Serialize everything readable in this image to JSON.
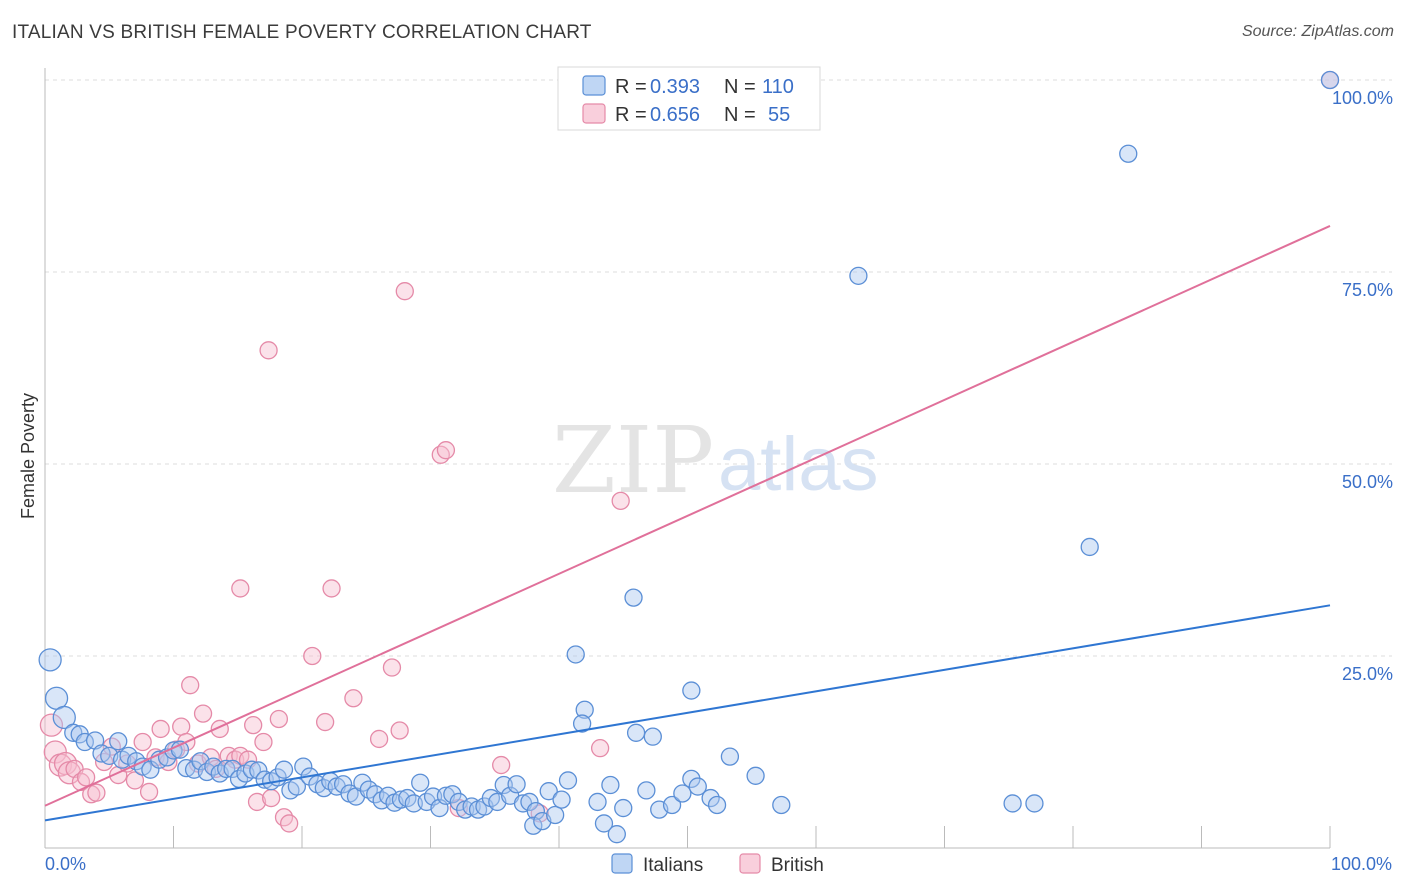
{
  "title": "ITALIAN VS BRITISH FEMALE POVERTY CORRELATION CHART",
  "source": "Source: ZipAtlas.com",
  "watermark": {
    "part1": "ZIP",
    "part2": "atlas"
  },
  "colors": {
    "italians_fill": "#aac8f0",
    "italians_stroke": "#5b8fd6",
    "italians_line": "#2f76d2",
    "british_fill": "#f7bfd0",
    "british_stroke": "#e58aa8",
    "british_line": "#e0709a",
    "grid": "#dddddd",
    "label": "#3a6fc8"
  },
  "legend": {
    "rows": [
      {
        "r_label": "R =",
        "r_value": "0.393",
        "n_label": "N =",
        "n_value": "110"
      },
      {
        "r_label": "R =",
        "r_value": "0.656",
        "n_label": "N =",
        "n_value": "55"
      }
    ]
  },
  "bottom_legend": {
    "italians": "Italians",
    "british": "British"
  },
  "chart_data": {
    "type": "scatter",
    "title": "ITALIAN VS BRITISH FEMALE POVERTY CORRELATION CHART",
    "xlabel": "",
    "ylabel": "Female Poverty",
    "xlim": [
      0,
      100
    ],
    "ylim": [
      0,
      100
    ],
    "x_tick_labels": [
      "0.0%",
      "100.0%"
    ],
    "y_tick_labels": [
      "100.0%",
      "75.0%",
      "50.0%",
      "25.0%"
    ],
    "y_ticks": [
      100,
      75,
      50,
      25
    ],
    "grid": true,
    "legend_position": "top-center",
    "series": [
      {
        "name": "Italians",
        "R": 0.393,
        "N": 110,
        "trend": {
          "x": [
            0,
            100
          ],
          "y": [
            3.6,
            31.6
          ]
        },
        "points": [
          [
            0.4,
            24.5
          ],
          [
            0.9,
            19.5
          ],
          [
            1.5,
            17.0
          ],
          [
            2.2,
            15.0
          ],
          [
            2.7,
            14.8
          ],
          [
            3.1,
            13.8
          ],
          [
            3.9,
            14.0
          ],
          [
            4.4,
            12.3
          ],
          [
            5.0,
            12.0
          ],
          [
            5.7,
            13.9
          ],
          [
            6.0,
            11.5
          ],
          [
            6.5,
            12.0
          ],
          [
            7.1,
            11.3
          ],
          [
            7.6,
            10.6
          ],
          [
            8.2,
            10.2
          ],
          [
            8.9,
            11.5
          ],
          [
            9.5,
            11.8
          ],
          [
            10.0,
            12.7
          ],
          [
            10.5,
            12.8
          ],
          [
            11.0,
            10.4
          ],
          [
            11.6,
            10.2
          ],
          [
            12.1,
            11.3
          ],
          [
            12.6,
            9.9
          ],
          [
            13.1,
            10.6
          ],
          [
            13.6,
            9.7
          ],
          [
            14.1,
            10.3
          ],
          [
            14.6,
            10.3
          ],
          [
            15.1,
            9.0
          ],
          [
            15.6,
            9.7
          ],
          [
            16.1,
            10.2
          ],
          [
            16.6,
            10.1
          ],
          [
            17.1,
            8.9
          ],
          [
            17.6,
            8.7
          ],
          [
            18.1,
            9.2
          ],
          [
            18.6,
            10.2
          ],
          [
            19.1,
            7.5
          ],
          [
            19.6,
            8.0
          ],
          [
            20.1,
            10.6
          ],
          [
            20.6,
            9.3
          ],
          [
            21.2,
            8.3
          ],
          [
            21.7,
            7.8
          ],
          [
            22.2,
            8.7
          ],
          [
            22.7,
            8.0
          ],
          [
            23.2,
            8.3
          ],
          [
            23.7,
            7.1
          ],
          [
            24.2,
            6.7
          ],
          [
            24.7,
            8.5
          ],
          [
            25.2,
            7.6
          ],
          [
            25.7,
            7.0
          ],
          [
            26.2,
            6.2
          ],
          [
            26.7,
            6.8
          ],
          [
            27.2,
            5.9
          ],
          [
            27.7,
            6.3
          ],
          [
            28.2,
            6.5
          ],
          [
            28.7,
            5.8
          ],
          [
            29.2,
            8.5
          ],
          [
            29.7,
            6.0
          ],
          [
            30.2,
            6.7
          ],
          [
            30.7,
            5.2
          ],
          [
            31.2,
            6.8
          ],
          [
            31.7,
            7.0
          ],
          [
            32.2,
            6.0
          ],
          [
            32.7,
            5.0
          ],
          [
            33.2,
            5.4
          ],
          [
            33.7,
            5.0
          ],
          [
            34.2,
            5.4
          ],
          [
            34.7,
            6.5
          ],
          [
            35.2,
            6.0
          ],
          [
            35.7,
            8.2
          ],
          [
            36.2,
            6.8
          ],
          [
            36.7,
            8.3
          ],
          [
            37.2,
            5.8
          ],
          [
            37.7,
            6.0
          ],
          [
            38.2,
            4.8
          ],
          [
            38.0,
            2.9
          ],
          [
            38.7,
            3.5
          ],
          [
            39.2,
            7.4
          ],
          [
            39.7,
            4.3
          ],
          [
            40.2,
            6.3
          ],
          [
            40.7,
            8.8
          ],
          [
            41.3,
            25.2
          ],
          [
            42.0,
            18.0
          ],
          [
            41.8,
            16.2
          ],
          [
            43.0,
            6.0
          ],
          [
            43.5,
            3.2
          ],
          [
            44.0,
            8.2
          ],
          [
            44.5,
            1.8
          ],
          [
            45.0,
            5.2
          ],
          [
            45.8,
            32.6
          ],
          [
            46.0,
            15.0
          ],
          [
            46.8,
            7.5
          ],
          [
            47.3,
            14.5
          ],
          [
            47.8,
            5.0
          ],
          [
            48.8,
            5.6
          ],
          [
            49.6,
            7.1
          ],
          [
            50.3,
            9.0
          ],
          [
            50.8,
            8.0
          ],
          [
            50.3,
            20.5
          ],
          [
            51.8,
            6.5
          ],
          [
            52.3,
            5.6
          ],
          [
            53.3,
            11.9
          ],
          [
            55.3,
            9.4
          ],
          [
            57.3,
            5.6
          ],
          [
            63.3,
            74.5
          ],
          [
            75.3,
            5.8
          ],
          [
            77.0,
            5.8
          ],
          [
            81.3,
            39.2
          ],
          [
            84.3,
            90.4
          ],
          [
            100.0,
            100.0
          ]
        ]
      },
      {
        "name": "British",
        "R": 0.656,
        "N": 55,
        "trend": {
          "x": [
            0,
            100
          ],
          "y": [
            5.5,
            81.0
          ]
        },
        "points": [
          [
            0.5,
            16.0
          ],
          [
            0.8,
            12.5
          ],
          [
            1.2,
            10.8
          ],
          [
            1.6,
            11.0
          ],
          [
            1.9,
            9.8
          ],
          [
            2.3,
            10.3
          ],
          [
            2.8,
            8.6
          ],
          [
            3.2,
            9.2
          ],
          [
            3.6,
            7.0
          ],
          [
            4.0,
            7.2
          ],
          [
            4.6,
            11.2
          ],
          [
            5.2,
            13.2
          ],
          [
            5.7,
            9.5
          ],
          [
            6.4,
            11.0
          ],
          [
            7.0,
            8.8
          ],
          [
            7.6,
            13.8
          ],
          [
            8.1,
            7.3
          ],
          [
            8.6,
            11.8
          ],
          [
            9.0,
            15.5
          ],
          [
            9.6,
            11.2
          ],
          [
            10.2,
            12.8
          ],
          [
            10.6,
            15.8
          ],
          [
            11.0,
            13.8
          ],
          [
            11.3,
            21.2
          ],
          [
            11.9,
            11.0
          ],
          [
            12.3,
            17.5
          ],
          [
            12.9,
            11.8
          ],
          [
            13.3,
            10.3
          ],
          [
            13.6,
            15.5
          ],
          [
            14.3,
            12.0
          ],
          [
            14.8,
            11.5
          ],
          [
            15.2,
            12.0
          ],
          [
            15.2,
            33.8
          ],
          [
            15.8,
            11.5
          ],
          [
            16.2,
            16.0
          ],
          [
            16.5,
            6.0
          ],
          [
            17.0,
            13.8
          ],
          [
            17.4,
            64.8
          ],
          [
            17.6,
            6.5
          ],
          [
            18.2,
            16.8
          ],
          [
            18.6,
            4.0
          ],
          [
            19.0,
            3.2
          ],
          [
            20.8,
            25.0
          ],
          [
            21.8,
            16.4
          ],
          [
            22.3,
            33.8
          ],
          [
            24.0,
            19.5
          ],
          [
            26.0,
            14.2
          ],
          [
            27.0,
            23.5
          ],
          [
            27.6,
            15.3
          ],
          [
            28.0,
            72.5
          ],
          [
            30.8,
            51.2
          ],
          [
            31.2,
            51.8
          ],
          [
            32.2,
            5.2
          ],
          [
            35.5,
            10.8
          ],
          [
            38.5,
            4.5
          ],
          [
            43.2,
            13.0
          ],
          [
            44.8,
            45.2
          ],
          [
            100.0,
            100.0
          ]
        ]
      }
    ]
  }
}
